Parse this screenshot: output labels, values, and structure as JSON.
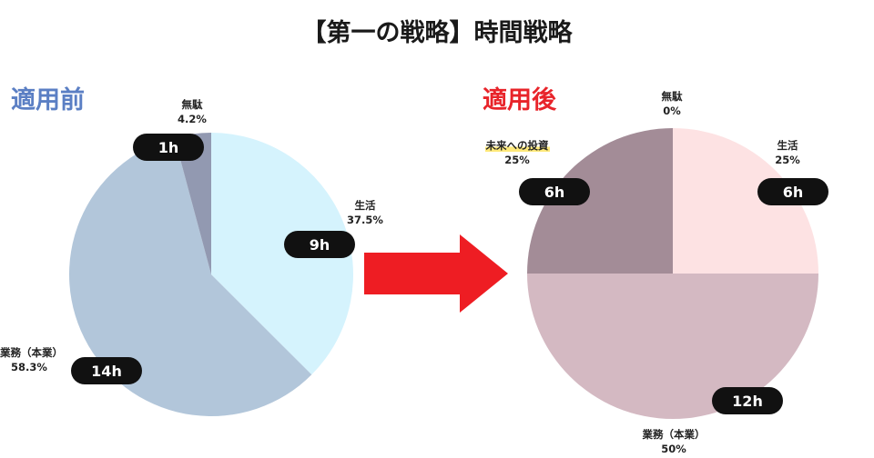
{
  "title": "【第一の戦略】時間戦略",
  "colors": {
    "arrow": "#ee1d23",
    "pill": "#111111"
  },
  "chart_data": [
    {
      "type": "pie",
      "heading": "適用前",
      "heading_color": "#5b7fc4",
      "slices": [
        {
          "label": "生活",
          "percent_label": "37.5%",
          "value": 9,
          "hours_label": "9h",
          "color": "#d5f3fd"
        },
        {
          "label": "業務（本業）",
          "percent_label": "58.3%",
          "value": 14,
          "hours_label": "14h",
          "color": "#b2c6da"
        },
        {
          "label": "無駄",
          "percent_label": "4.2%",
          "value": 1,
          "hours_label": "1h",
          "color": "#9299b1"
        }
      ]
    },
    {
      "type": "pie",
      "heading": "適用後",
      "heading_color": "#e8242a",
      "slices": [
        {
          "label": "生活",
          "percent_label": "25%",
          "value": 6,
          "hours_label": "6h",
          "color": "#fde2e3"
        },
        {
          "label": "業務（本業）",
          "percent_label": "50%",
          "value": 12,
          "hours_label": "12h",
          "color": "#d4b9c2"
        },
        {
          "label": "未来への投資",
          "percent_label": "25%",
          "value": 6,
          "hours_label": "6h",
          "color": "#a38c97"
        },
        {
          "label": "無駄",
          "percent_label": "0%",
          "value": 0,
          "hours_label": "",
          "color": "#a38c97"
        }
      ]
    }
  ]
}
